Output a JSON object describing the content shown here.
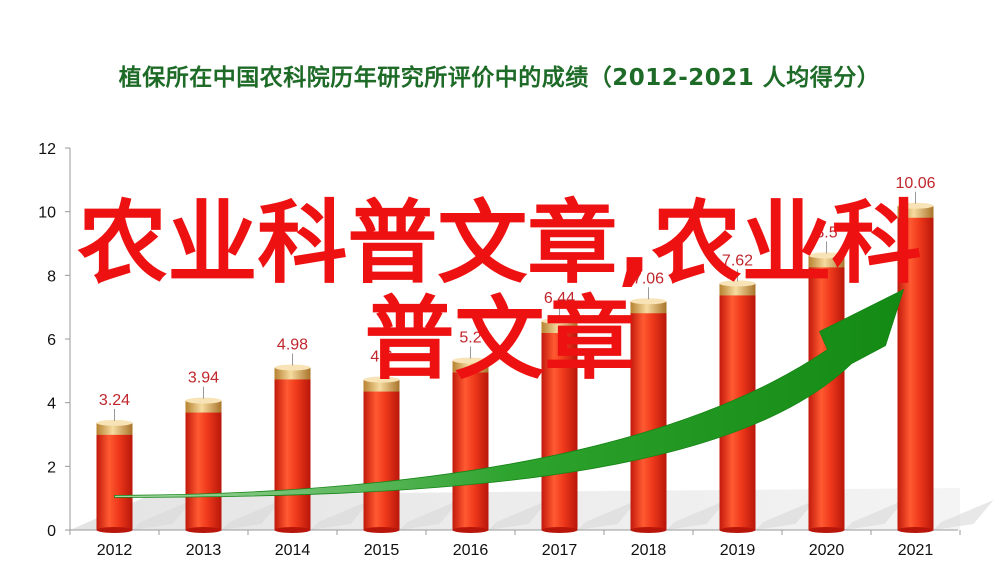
{
  "chart_data": {
    "type": "bar",
    "title": "植保所在中国农科院历年研究所评价中的成绩（2012-2021  人均得分）",
    "categories": [
      "2012",
      "2013",
      "2014",
      "2015",
      "2016",
      "2017",
      "2018",
      "2019",
      "2020",
      "2021"
    ],
    "values": [
      3.24,
      3.94,
      4.98,
      4.6,
      5.2,
      6.44,
      7.06,
      7.62,
      8.5,
      10.06
    ],
    "data_labels": [
      "3.24",
      "3.94",
      "4.98",
      "4.6",
      "5.2",
      "6.44",
      "7.06",
      "7.62",
      "8.5",
      "10.06"
    ],
    "y_ticks": [
      "0",
      "2",
      "4",
      "6",
      "8",
      "10",
      "12"
    ],
    "ylim": [
      0,
      12
    ],
    "grid": false,
    "legend": "none",
    "trend_arrow": "rising green arrow from 2012 to 2021",
    "colors": {
      "bar": "#e8311a",
      "bar_cap": "#e8b96a",
      "arrow": "#1f9a1f",
      "title": "#1e6b28",
      "data_label": "#c0262b"
    }
  },
  "overlay": {
    "line1": "农业科普文章,农业科",
    "line2": "普文章",
    "color": "#ee1111"
  }
}
